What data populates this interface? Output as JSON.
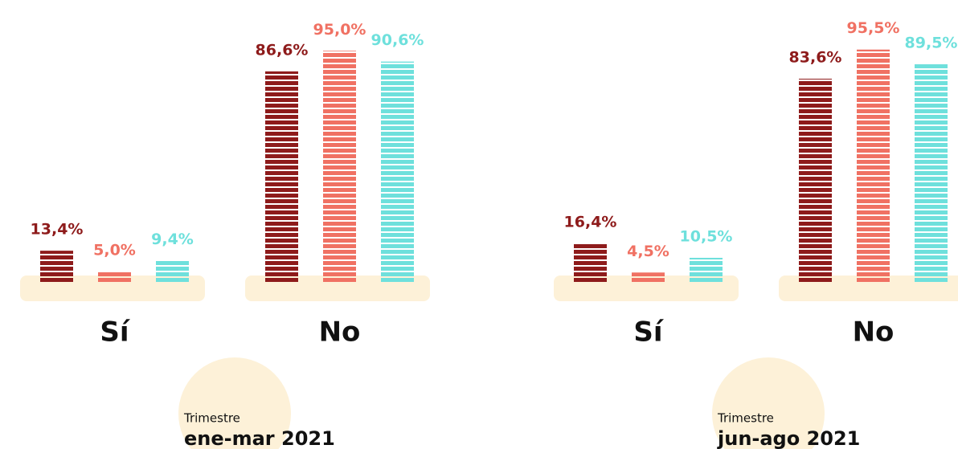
{
  "chart_data": [
    {
      "type": "bar",
      "categories": [
        "Sí",
        "No"
      ],
      "series": [
        {
          "color": "#8e1b1b",
          "values": [
            13.4,
            86.6
          ],
          "value_labels": [
            "13,4%",
            "86,6%"
          ]
        },
        {
          "color": "#f07163",
          "values": [
            5.0,
            95.0
          ],
          "value_labels": [
            "5,0%",
            "95,0%"
          ]
        },
        {
          "color": "#6ee0dc",
          "values": [
            9.4,
            90.6
          ],
          "value_labels": [
            "9,4%",
            "90,6%"
          ]
        }
      ],
      "caption_label": "Trimestre",
      "caption": "ene-mar 2021"
    },
    {
      "type": "bar",
      "categories": [
        "Sí",
        "No"
      ],
      "series": [
        {
          "color": "#8e1b1b",
          "values": [
            16.4,
            83.6
          ],
          "value_labels": [
            "16,4%",
            "83,6%"
          ]
        },
        {
          "color": "#f07163",
          "values": [
            4.5,
            95.5
          ],
          "value_labels": [
            "4,5%",
            "95,5%"
          ]
        },
        {
          "color": "#6ee0dc",
          "values": [
            10.5,
            89.5
          ],
          "value_labels": [
            "10,5%",
            "89,5%"
          ]
        }
      ],
      "caption_label": "Trimestre",
      "caption": "jun-ago 2021"
    }
  ]
}
